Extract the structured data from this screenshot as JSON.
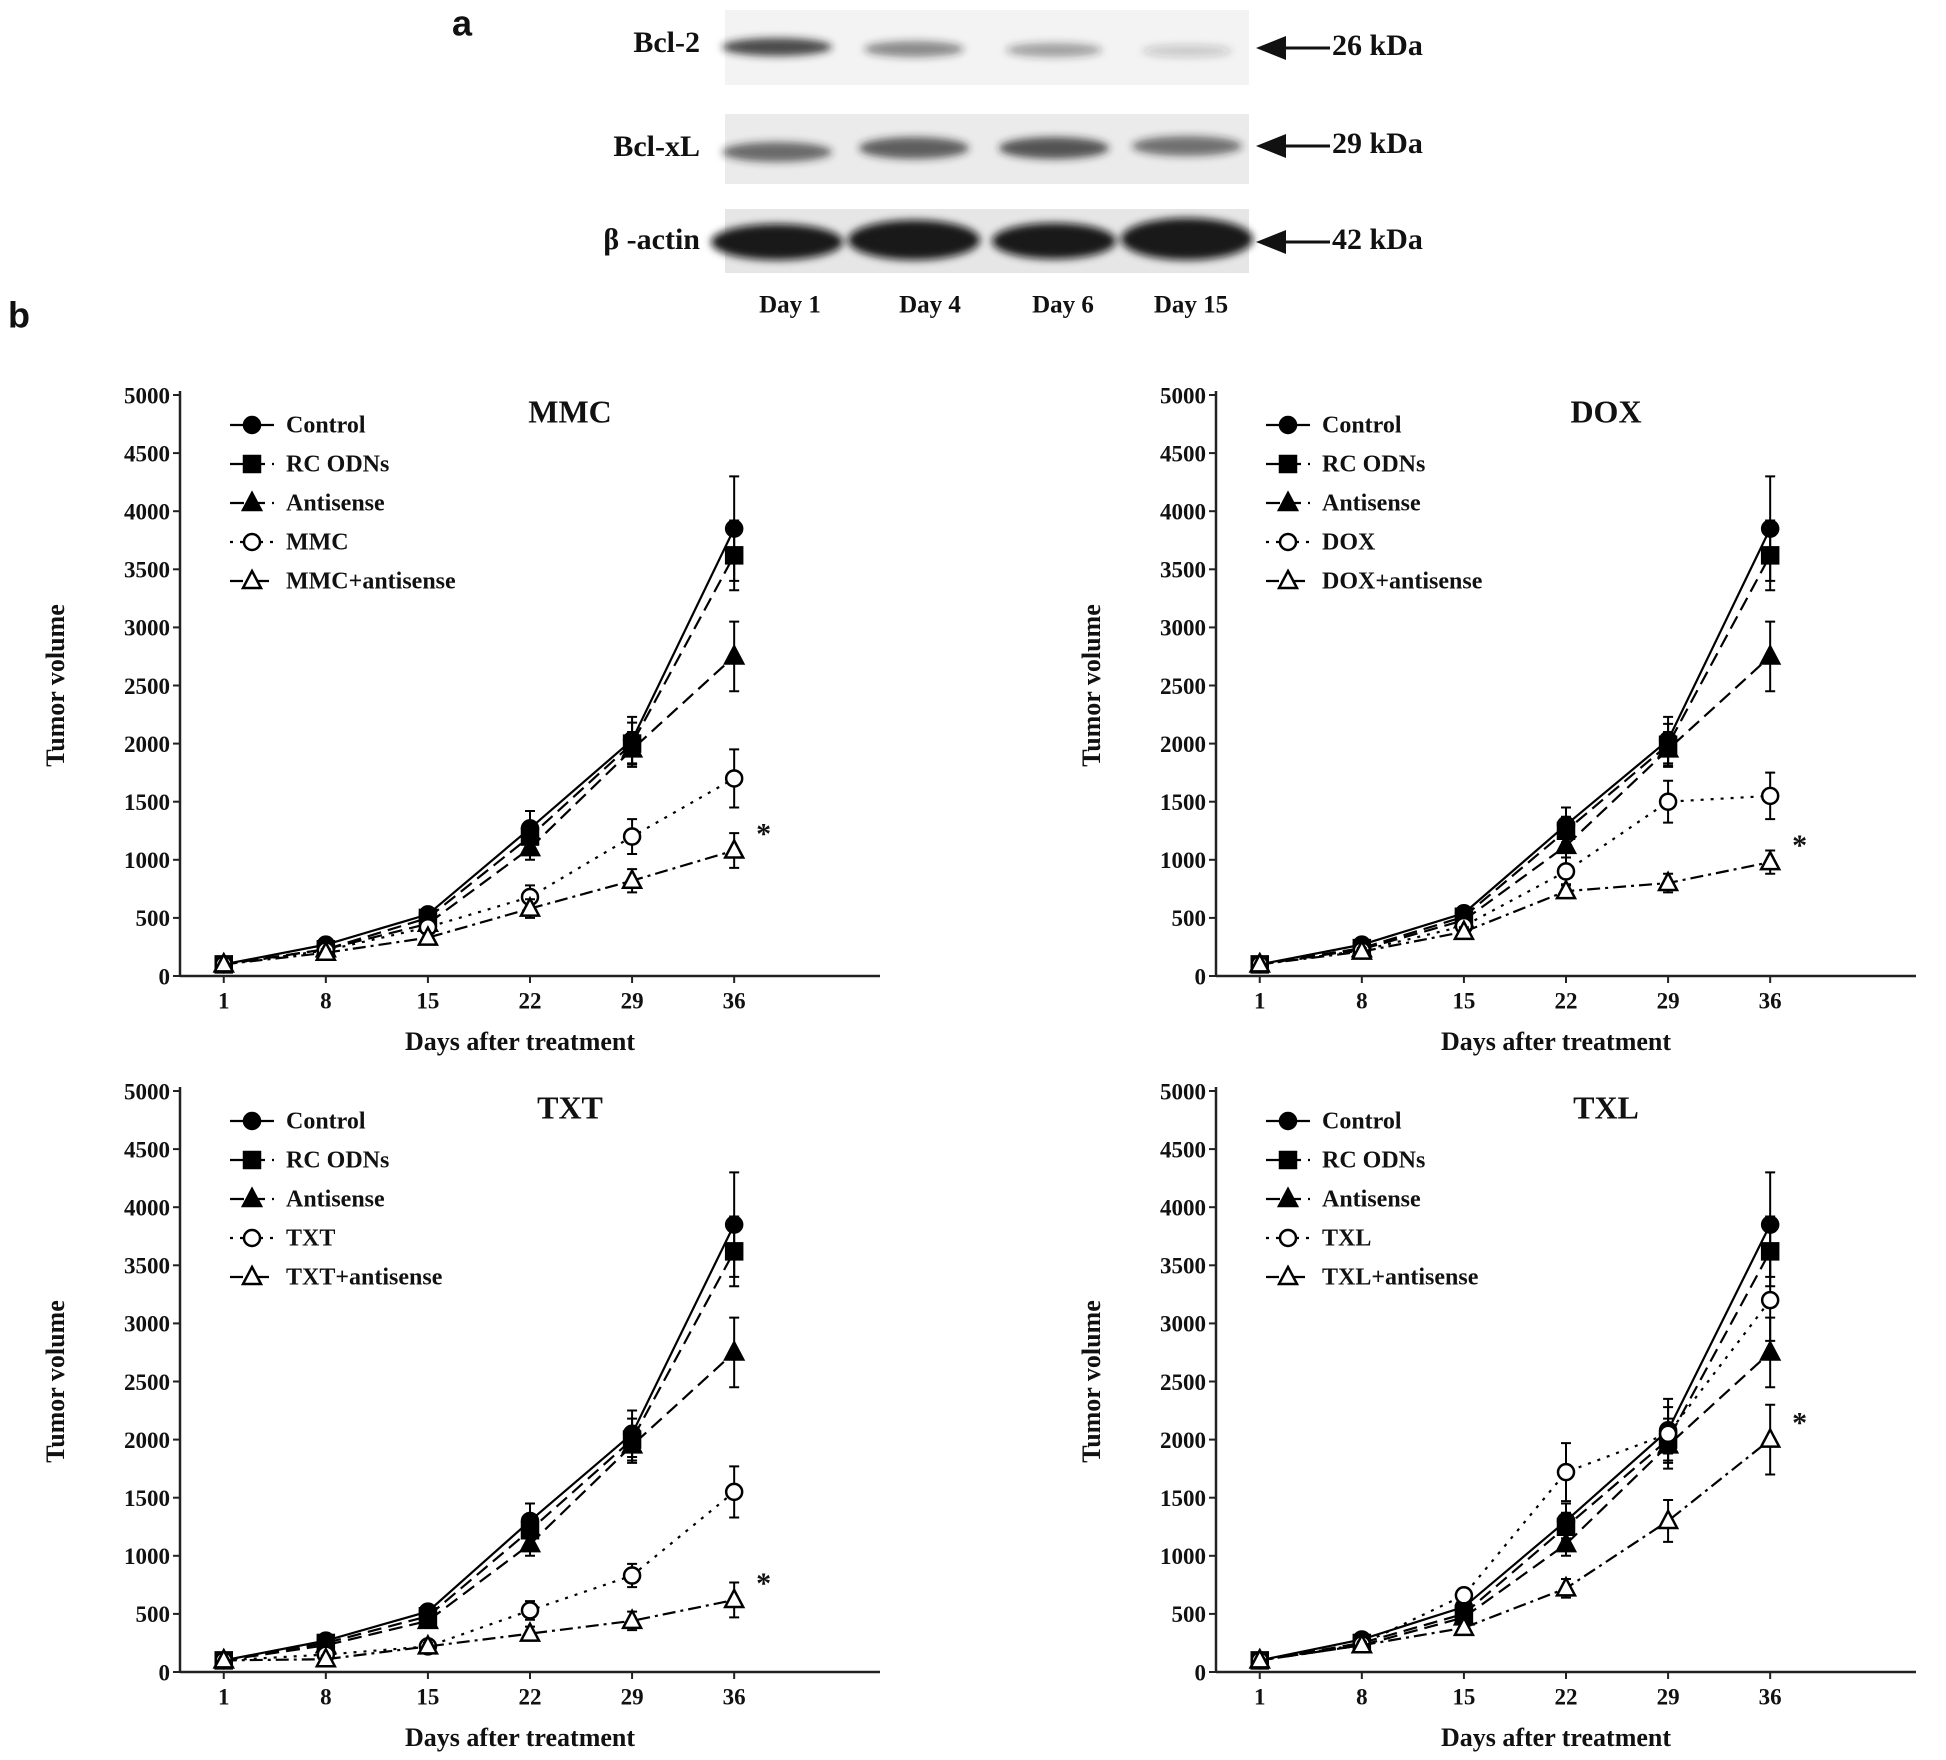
{
  "panel_a": {
    "label": "a",
    "rows": [
      {
        "name": "Bcl-2",
        "size": "26 kDa"
      },
      {
        "name": "Bcl-xL",
        "size": "29 kDa"
      },
      {
        "name": "β -actin",
        "size": "42 kDa"
      }
    ],
    "lanes": [
      "Day 1",
      "Day 4",
      "Day 6",
      "Day 15"
    ]
  },
  "panel_b_label": "b",
  "chart_data": [
    {
      "type": "line",
      "title": "MMC",
      "xlabel": "Days after treatment",
      "ylabel": "Tumor volume",
      "x": [
        1,
        8,
        15,
        22,
        29,
        36
      ],
      "xlim": [
        -2,
        46
      ],
      "xticks": [
        1,
        8,
        15,
        22,
        29,
        36
      ],
      "ylim": [
        0,
        5000
      ],
      "yticks": [
        0,
        500,
        1000,
        1500,
        2000,
        2500,
        3000,
        3500,
        4000,
        4500,
        5000
      ],
      "series": [
        {
          "name": "Control",
          "color": "#000000",
          "marker": "circle",
          "filled": true,
          "dash": "solid",
          "values": [
            100,
            270,
            530,
            1270,
            2030,
            3850
          ],
          "errors": [
            20,
            30,
            40,
            150,
            200,
            450
          ]
        },
        {
          "name": "RC ODNs",
          "color": "#000000",
          "marker": "square",
          "filled": true,
          "dash": "dashed",
          "values": [
            100,
            230,
            500,
            1200,
            2000,
            3620
          ],
          "errors": [
            20,
            30,
            40,
            120,
            180,
            300
          ]
        },
        {
          "name": "Antisense",
          "color": "#000000",
          "marker": "triangle",
          "filled": true,
          "dash": "dashed",
          "values": [
            100,
            230,
            450,
            1100,
            1950,
            2750
          ],
          "errors": [
            20,
            30,
            40,
            100,
            150,
            300
          ]
        },
        {
          "name": "MMC",
          "color": "#000000",
          "marker": "circle",
          "filled": false,
          "dash": "dotted",
          "values": [
            100,
            220,
            420,
            680,
            1200,
            1700
          ],
          "errors": [
            20,
            30,
            40,
            100,
            150,
            250
          ]
        },
        {
          "name": "MMC+antisense",
          "color": "#000000",
          "marker": "triangle",
          "filled": false,
          "dash": "dashdot",
          "values": [
            100,
            200,
            330,
            580,
            820,
            1080
          ],
          "errors": [
            20,
            30,
            40,
            80,
            100,
            150
          ],
          "annotation": "*"
        }
      ]
    },
    {
      "type": "line",
      "title": "DOX",
      "xlabel": "Days after treatment",
      "ylabel": "Tumor volume",
      "x": [
        1,
        8,
        15,
        22,
        29,
        36
      ],
      "xlim": [
        -2,
        46
      ],
      "xticks": [
        1,
        8,
        15,
        22,
        29,
        36
      ],
      "ylim": [
        0,
        5000
      ],
      "yticks": [
        0,
        500,
        1000,
        1500,
        2000,
        2500,
        3000,
        3500,
        4000,
        4500,
        5000
      ],
      "series": [
        {
          "name": "Control",
          "color": "#000000",
          "marker": "circle",
          "filled": true,
          "dash": "solid",
          "values": [
            100,
            270,
            540,
            1300,
            2030,
            3850
          ],
          "errors": [
            20,
            30,
            40,
            150,
            200,
            450
          ]
        },
        {
          "name": "RC ODNs",
          "color": "#000000",
          "marker": "square",
          "filled": true,
          "dash": "dashed",
          "values": [
            100,
            240,
            510,
            1250,
            1990,
            3620
          ],
          "errors": [
            20,
            30,
            40,
            120,
            180,
            300
          ]
        },
        {
          "name": "Antisense",
          "color": "#000000",
          "marker": "triangle",
          "filled": true,
          "dash": "dashed",
          "values": [
            100,
            230,
            480,
            1120,
            1950,
            2750
          ],
          "errors": [
            20,
            30,
            40,
            100,
            150,
            300
          ]
        },
        {
          "name": "DOX",
          "color": "#000000",
          "marker": "circle",
          "filled": false,
          "dash": "dotted",
          "values": [
            100,
            220,
            430,
            900,
            1500,
            1550
          ],
          "errors": [
            20,
            30,
            40,
            120,
            180,
            200
          ]
        },
        {
          "name": "DOX+antisense",
          "color": "#000000",
          "marker": "triangle",
          "filled": false,
          "dash": "dashdot",
          "values": [
            100,
            210,
            380,
            730,
            800,
            980
          ],
          "errors": [
            20,
            30,
            40,
            60,
            80,
            100
          ],
          "annotation": "*"
        }
      ]
    },
    {
      "type": "line",
      "title": "TXT",
      "xlabel": "Days after treatment",
      "ylabel": "Tumor volume",
      "x": [
        1,
        8,
        15,
        22,
        29,
        36
      ],
      "xlim": [
        -2,
        46
      ],
      "xticks": [
        1,
        8,
        15,
        22,
        29,
        36
      ],
      "ylim": [
        0,
        5000
      ],
      "yticks": [
        0,
        500,
        1000,
        1500,
        2000,
        2500,
        3000,
        3500,
        4000,
        4500,
        5000
      ],
      "series": [
        {
          "name": "Control",
          "color": "#000000",
          "marker": "circle",
          "filled": true,
          "dash": "solid",
          "values": [
            100,
            270,
            520,
            1300,
            2050,
            3850
          ],
          "errors": [
            20,
            30,
            40,
            150,
            200,
            450
          ]
        },
        {
          "name": "RC ODNs",
          "color": "#000000",
          "marker": "square",
          "filled": true,
          "dash": "dashed",
          "values": [
            100,
            250,
            480,
            1220,
            2000,
            3620
          ],
          "errors": [
            20,
            30,
            40,
            120,
            180,
            300
          ]
        },
        {
          "name": "Antisense",
          "color": "#000000",
          "marker": "triangle",
          "filled": true,
          "dash": "dashed",
          "values": [
            100,
            230,
            440,
            1100,
            1950,
            2750
          ],
          "errors": [
            20,
            30,
            40,
            100,
            150,
            300
          ]
        },
        {
          "name": "TXT",
          "color": "#000000",
          "marker": "circle",
          "filled": false,
          "dash": "dotted",
          "values": [
            100,
            150,
            220,
            530,
            830,
            1550
          ],
          "errors": [
            20,
            30,
            40,
            80,
            100,
            220
          ]
        },
        {
          "name": "TXT+antisense",
          "color": "#000000",
          "marker": "triangle",
          "filled": false,
          "dash": "dashdot",
          "values": [
            100,
            110,
            220,
            330,
            440,
            620
          ],
          "errors": [
            20,
            30,
            30,
            60,
            80,
            150
          ],
          "annotation": "*"
        }
      ]
    },
    {
      "type": "line",
      "title": "TXL",
      "xlabel": "Days after treatment",
      "ylabel": "Tumor volume",
      "x": [
        1,
        8,
        15,
        22,
        29,
        36
      ],
      "xlim": [
        -2,
        46
      ],
      "xticks": [
        1,
        8,
        15,
        22,
        29,
        36
      ],
      "ylim": [
        0,
        5000
      ],
      "yticks": [
        0,
        500,
        1000,
        1500,
        2000,
        2500,
        3000,
        3500,
        4000,
        4500,
        5000
      ],
      "series": [
        {
          "name": "Control",
          "color": "#000000",
          "marker": "circle",
          "filled": true,
          "dash": "solid",
          "values": [
            100,
            280,
            560,
            1300,
            2080,
            3850
          ],
          "errors": [
            20,
            30,
            40,
            150,
            200,
            450
          ]
        },
        {
          "name": "RC ODNs",
          "color": "#000000",
          "marker": "square",
          "filled": true,
          "dash": "dashed",
          "values": [
            100,
            250,
            500,
            1250,
            2000,
            3620
          ],
          "errors": [
            20,
            30,
            40,
            120,
            180,
            300
          ]
        },
        {
          "name": "Antisense",
          "color": "#000000",
          "marker": "triangle",
          "filled": true,
          "dash": "dashed",
          "values": [
            100,
            230,
            470,
            1100,
            1950,
            2750
          ],
          "errors": [
            20,
            30,
            40,
            100,
            150,
            300
          ]
        },
        {
          "name": "TXL",
          "color": "#000000",
          "marker": "circle",
          "filled": false,
          "dash": "dotted",
          "values": [
            100,
            240,
            660,
            1720,
            2050,
            3200
          ],
          "errors": [
            20,
            30,
            60,
            250,
            300,
            350
          ]
        },
        {
          "name": "TXL+antisense",
          "color": "#000000",
          "marker": "triangle",
          "filled": false,
          "dash": "dashdot",
          "values": [
            100,
            230,
            380,
            720,
            1300,
            2000
          ],
          "errors": [
            20,
            30,
            40,
            80,
            180,
            300
          ],
          "annotation": "*"
        }
      ]
    }
  ]
}
